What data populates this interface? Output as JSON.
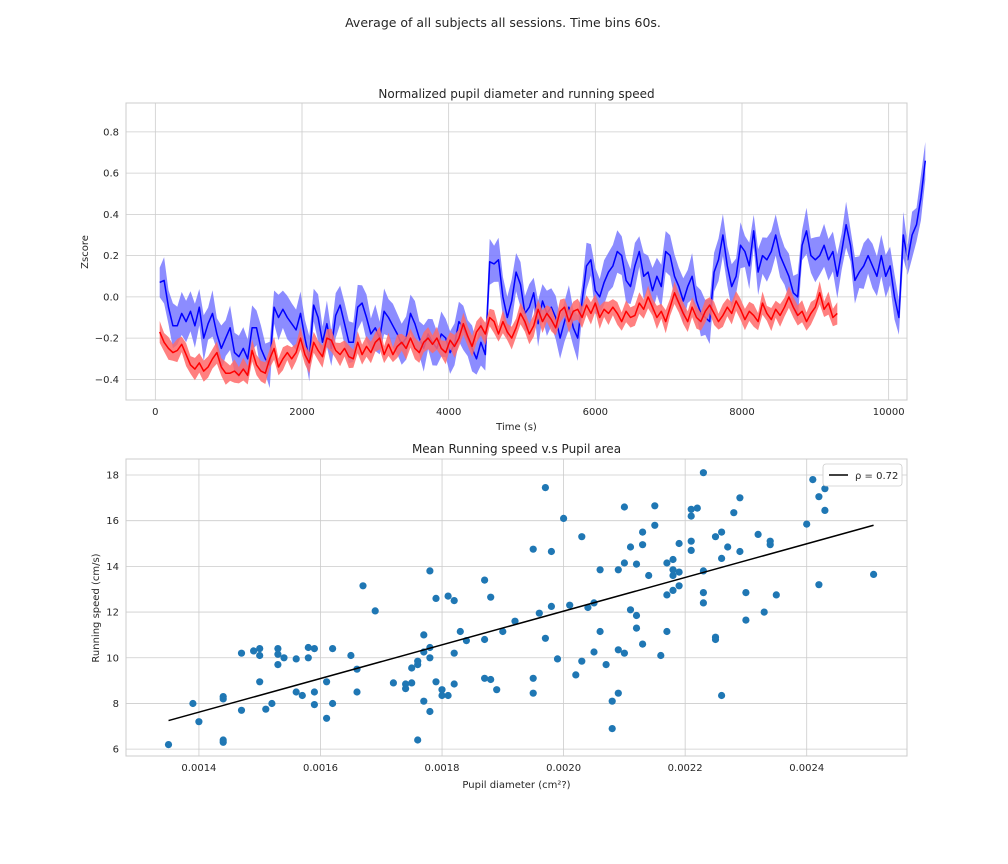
{
  "figure": {
    "suptitle": "Average of all subjects all sessions. Time bins 60s."
  },
  "chart_data": [
    {
      "type": "line",
      "title": "Normalized pupil diameter and running speed",
      "xlabel": "Time (s)",
      "ylabel": "Zscore",
      "xlim": [
        -400,
        10250
      ],
      "ylim": [
        -0.5,
        0.94
      ],
      "xticks": [
        0,
        2000,
        4000,
        6000,
        8000,
        10000
      ],
      "xtick_labels": [
        "0",
        "2000",
        "4000",
        "6000",
        "8000",
        "10000"
      ],
      "yticks": [
        -0.4,
        -0.2,
        0.0,
        0.2,
        0.4,
        0.6,
        0.8
      ],
      "ytick_labels": [
        "−0.4",
        "−0.2",
        "0.0",
        "0.2",
        "0.4",
        "0.6",
        "0.8"
      ],
      "grid": true,
      "legend": "none",
      "series": [
        {
          "color": "#0000ff",
          "band_color": "#7878ff",
          "band_opacity": 0.85,
          "x_start": 60,
          "x_step": 60,
          "values": [
            0.07,
            0.08,
            -0.05,
            -0.14,
            -0.14,
            -0.08,
            -0.12,
            -0.07,
            -0.14,
            -0.05,
            -0.2,
            -0.13,
            -0.08,
            -0.18,
            -0.25,
            -0.2,
            -0.15,
            -0.27,
            -0.29,
            -0.25,
            -0.3,
            -0.15,
            -0.15,
            -0.25,
            -0.3,
            -0.33,
            -0.05,
            -0.1,
            -0.06,
            -0.1,
            -0.13,
            -0.16,
            -0.08,
            -0.2,
            -0.3,
            -0.04,
            -0.1,
            -0.22,
            -0.13,
            -0.25,
            -0.09,
            -0.04,
            -0.13,
            -0.22,
            -0.22,
            -0.05,
            -0.03,
            -0.1,
            -0.18,
            -0.15,
            -0.2,
            -0.07,
            -0.1,
            -0.14,
            -0.18,
            -0.23,
            -0.2,
            -0.08,
            -0.13,
            -0.2,
            -0.25,
            -0.18,
            -0.22,
            -0.25,
            -0.18,
            -0.2,
            -0.27,
            -0.23,
            -0.12,
            -0.15,
            -0.2,
            -0.25,
            -0.3,
            -0.22,
            -0.28,
            0.17,
            0.16,
            0.18,
            0.0,
            -0.1,
            -0.02,
            0.12,
            0.06,
            -0.08,
            -0.05,
            0.02,
            -0.13,
            -0.02,
            -0.08,
            -0.05,
            -0.1,
            -0.2,
            -0.12,
            -0.05,
            -0.15,
            -0.2,
            -0.02,
            0.15,
            0.18,
            0.03,
            0.0,
            0.07,
            0.12,
            0.15,
            0.22,
            0.2,
            0.08,
            0.05,
            0.15,
            0.22,
            0.1,
            0.12,
            0.03,
            0.1,
            0.05,
            0.22,
            0.2,
            0.1,
            0.05,
            -0.02,
            0.05,
            0.1,
            -0.02,
            -0.08,
            -0.1,
            -0.12,
            0.12,
            0.18,
            0.3,
            0.15,
            0.05,
            0.1,
            0.25,
            0.22,
            0.15,
            0.32,
            0.12,
            0.2,
            0.18,
            0.22,
            0.3,
            0.2,
            0.15,
            0.1,
            0.02,
            0.0,
            0.25,
            0.32,
            0.2,
            0.18,
            0.2,
            0.25,
            0.18,
            0.22,
            0.1,
            0.22,
            0.35,
            0.25,
            0.08,
            0.12,
            0.15,
            0.2,
            0.15,
            0.1,
            0.2,
            0.1,
            0.15,
            0.0,
            -0.1,
            0.3,
            0.18,
            0.3,
            0.35,
            0.48,
            0.66
          ],
          "band_half_width": 0.09
        },
        {
          "color": "#ff0000",
          "band_color": "#ff6a6a",
          "band_opacity": 0.85,
          "x_start": 60,
          "x_step": 60,
          "values": [
            -0.17,
            -0.22,
            -0.25,
            -0.27,
            -0.26,
            -0.23,
            -0.28,
            -0.33,
            -0.35,
            -0.32,
            -0.36,
            -0.34,
            -0.3,
            -0.27,
            -0.34,
            -0.37,
            -0.37,
            -0.36,
            -0.38,
            -0.35,
            -0.38,
            -0.26,
            -0.33,
            -0.36,
            -0.37,
            -0.3,
            -0.25,
            -0.34,
            -0.3,
            -0.27,
            -0.3,
            -0.27,
            -0.2,
            -0.28,
            -0.32,
            -0.22,
            -0.26,
            -0.29,
            -0.2,
            -0.21,
            -0.26,
            -0.28,
            -0.25,
            -0.29,
            -0.3,
            -0.22,
            -0.28,
            -0.24,
            -0.27,
            -0.22,
            -0.2,
            -0.28,
            -0.23,
            -0.28,
            -0.24,
            -0.22,
            -0.25,
            -0.2,
            -0.25,
            -0.27,
            -0.22,
            -0.2,
            -0.23,
            -0.2,
            -0.25,
            -0.27,
            -0.21,
            -0.24,
            -0.2,
            -0.13,
            -0.19,
            -0.24,
            -0.17,
            -0.14,
            -0.18,
            -0.1,
            -0.12,
            -0.18,
            -0.12,
            -0.17,
            -0.2,
            -0.15,
            -0.08,
            -0.12,
            -0.18,
            -0.14,
            -0.06,
            -0.12,
            -0.08,
            -0.11,
            -0.15,
            -0.07,
            -0.05,
            -0.12,
            -0.07,
            -0.06,
            -0.1,
            -0.04,
            -0.08,
            -0.03,
            -0.1,
            -0.06,
            -0.08,
            -0.05,
            -0.08,
            -0.12,
            -0.07,
            -0.1,
            -0.09,
            -0.03,
            -0.06,
            0.0,
            -0.05,
            -0.1,
            -0.07,
            -0.12,
            -0.05,
            0.02,
            -0.03,
            -0.08,
            -0.12,
            -0.05,
            -0.1,
            -0.12,
            -0.07,
            -0.04,
            -0.08,
            -0.12,
            -0.09,
            -0.05,
            -0.08,
            -0.02,
            -0.06,
            -0.11,
            -0.07,
            -0.09,
            -0.12,
            -0.03,
            -0.08,
            -0.11,
            -0.06,
            -0.09,
            -0.05,
            0.0,
            -0.05,
            -0.09,
            -0.07,
            -0.12,
            -0.08,
            -0.05,
            0.02,
            -0.06,
            -0.03,
            -0.1,
            -0.08
          ],
          "band_half_width": 0.045
        }
      ]
    },
    {
      "type": "scatter",
      "title": "Mean Running speed v.s Pupil area",
      "xlabel": "Pupil diameter (cm²?)",
      "ylabel": "Running speed (cm/s)",
      "xlim": [
        0.00128,
        0.002565
      ],
      "ylim": [
        5.7,
        18.7
      ],
      "xticks": [
        0.0014,
        0.0016,
        0.0018,
        0.002,
        0.0022,
        0.0024
      ],
      "xtick_labels": [
        "0.0014",
        "0.0016",
        "0.0018",
        "0.0020",
        "0.0022",
        "0.0024"
      ],
      "yticks": [
        6,
        8,
        10,
        12,
        14,
        16,
        18
      ],
      "ytick_labels": [
        "6",
        "8",
        "10",
        "12",
        "14",
        "16",
        "18"
      ],
      "grid": true,
      "legend": "top-right",
      "legend_label": "ρ = 0.72",
      "point_color": "#1f77b4",
      "fit_line": {
        "color": "#000000",
        "x": [
          0.00135,
          0.00251
        ],
        "y": [
          7.25,
          15.8
        ]
      },
      "points": [
        [
          0.00135,
          6.2
        ],
        [
          0.00139,
          8.0
        ],
        [
          0.0014,
          7.2
        ],
        [
          0.00144,
          8.3
        ],
        [
          0.00144,
          8.2
        ],
        [
          0.00144,
          6.4
        ],
        [
          0.00144,
          6.3
        ],
        [
          0.00147,
          7.7
        ],
        [
          0.00147,
          10.2
        ],
        [
          0.00149,
          10.3
        ],
        [
          0.0015,
          10.4
        ],
        [
          0.0015,
          8.95
        ],
        [
          0.0015,
          10.1
        ],
        [
          0.00151,
          7.75
        ],
        [
          0.00152,
          8.0
        ],
        [
          0.00153,
          10.4
        ],
        [
          0.00153,
          10.15
        ],
        [
          0.00153,
          9.7
        ],
        [
          0.00154,
          10.0
        ],
        [
          0.00156,
          8.5
        ],
        [
          0.00156,
          9.95
        ],
        [
          0.00157,
          8.35
        ],
        [
          0.00158,
          10.0
        ],
        [
          0.00158,
          10.45
        ],
        [
          0.00159,
          10.4
        ],
        [
          0.00159,
          8.5
        ],
        [
          0.00159,
          7.95
        ],
        [
          0.00161,
          7.35
        ],
        [
          0.00161,
          8.95
        ],
        [
          0.00162,
          10.4
        ],
        [
          0.00162,
          8.0
        ],
        [
          0.00165,
          10.1
        ],
        [
          0.00166,
          9.5
        ],
        [
          0.00166,
          8.5
        ],
        [
          0.00167,
          13.15
        ],
        [
          0.00169,
          12.05
        ],
        [
          0.00172,
          8.9
        ],
        [
          0.00174,
          8.85
        ],
        [
          0.00174,
          8.65
        ],
        [
          0.00175,
          9.55
        ],
        [
          0.00175,
          8.9
        ],
        [
          0.00176,
          6.4
        ],
        [
          0.00176,
          9.7
        ],
        [
          0.00176,
          9.85
        ],
        [
          0.00177,
          8.1
        ],
        [
          0.00177,
          10.25
        ],
        [
          0.00177,
          11.0
        ],
        [
          0.00178,
          13.8
        ],
        [
          0.00178,
          10.0
        ],
        [
          0.00178,
          10.45
        ],
        [
          0.00178,
          7.65
        ],
        [
          0.00179,
          8.95
        ],
        [
          0.00179,
          12.6
        ],
        [
          0.0018,
          8.35
        ],
        [
          0.0018,
          8.6
        ],
        [
          0.00181,
          8.35
        ],
        [
          0.00181,
          12.7
        ],
        [
          0.00182,
          12.5
        ],
        [
          0.00182,
          10.2
        ],
        [
          0.00182,
          8.85
        ],
        [
          0.00183,
          11.15
        ],
        [
          0.00184,
          10.75
        ],
        [
          0.00187,
          9.1
        ],
        [
          0.00187,
          13.4
        ],
        [
          0.00187,
          10.8
        ],
        [
          0.00188,
          9.05
        ],
        [
          0.00188,
          12.65
        ],
        [
          0.00189,
          8.6
        ],
        [
          0.0019,
          11.15
        ],
        [
          0.00192,
          11.6
        ],
        [
          0.00195,
          8.45
        ],
        [
          0.00195,
          9.1
        ],
        [
          0.00195,
          14.75
        ],
        [
          0.00196,
          11.95
        ],
        [
          0.00197,
          10.85
        ],
        [
          0.00197,
          17.45
        ],
        [
          0.00198,
          12.25
        ],
        [
          0.00198,
          14.65
        ],
        [
          0.00199,
          9.95
        ],
        [
          0.002,
          16.1
        ],
        [
          0.00201,
          12.3
        ],
        [
          0.00202,
          9.25
        ],
        [
          0.00203,
          9.85
        ],
        [
          0.00203,
          15.3
        ],
        [
          0.00204,
          12.2
        ],
        [
          0.00205,
          10.25
        ],
        [
          0.00205,
          12.4
        ],
        [
          0.00206,
          11.15
        ],
        [
          0.00206,
          13.85
        ],
        [
          0.00207,
          9.7
        ],
        [
          0.00208,
          8.1
        ],
        [
          0.00208,
          6.9
        ],
        [
          0.00209,
          13.85
        ],
        [
          0.00209,
          10.35
        ],
        [
          0.00209,
          8.45
        ],
        [
          0.0021,
          14.15
        ],
        [
          0.0021,
          16.6
        ],
        [
          0.0021,
          10.2
        ],
        [
          0.00211,
          12.1
        ],
        [
          0.00211,
          14.85
        ],
        [
          0.00212,
          11.3
        ],
        [
          0.00212,
          11.85
        ],
        [
          0.00212,
          14.1
        ],
        [
          0.00213,
          15.5
        ],
        [
          0.00213,
          14.95
        ],
        [
          0.00213,
          10.6
        ],
        [
          0.00214,
          13.6
        ],
        [
          0.00215,
          16.65
        ],
        [
          0.00215,
          15.8
        ],
        [
          0.00216,
          10.1
        ],
        [
          0.00217,
          14.15
        ],
        [
          0.00217,
          11.15
        ],
        [
          0.00217,
          12.75
        ],
        [
          0.00218,
          13.6
        ],
        [
          0.00218,
          12.95
        ],
        [
          0.00218,
          13.85
        ],
        [
          0.00218,
          14.3
        ],
        [
          0.00219,
          13.15
        ],
        [
          0.00219,
          15.0
        ],
        [
          0.00219,
          13.75
        ],
        [
          0.00221,
          16.2
        ],
        [
          0.00221,
          16.5
        ],
        [
          0.00221,
          14.7
        ],
        [
          0.00221,
          15.1
        ],
        [
          0.00222,
          16.55
        ],
        [
          0.00223,
          18.1
        ],
        [
          0.00223,
          12.85
        ],
        [
          0.00223,
          12.4
        ],
        [
          0.00223,
          13.8
        ],
        [
          0.00225,
          15.3
        ],
        [
          0.00225,
          10.9
        ],
        [
          0.00225,
          10.8
        ],
        [
          0.00226,
          15.5
        ],
        [
          0.00226,
          14.35
        ],
        [
          0.00226,
          8.35
        ],
        [
          0.00227,
          14.85
        ],
        [
          0.00228,
          16.35
        ],
        [
          0.00229,
          17.0
        ],
        [
          0.00229,
          14.65
        ],
        [
          0.0023,
          12.85
        ],
        [
          0.0023,
          11.65
        ],
        [
          0.00232,
          15.4
        ],
        [
          0.00233,
          12.0
        ],
        [
          0.00234,
          15.1
        ],
        [
          0.00234,
          14.95
        ],
        [
          0.00235,
          12.75
        ],
        [
          0.0024,
          15.85
        ],
        [
          0.00241,
          17.8
        ],
        [
          0.00242,
          17.05
        ],
        [
          0.00242,
          13.2
        ],
        [
          0.00243,
          17.4
        ],
        [
          0.00243,
          16.45
        ],
        [
          0.00251,
          13.65
        ]
      ]
    }
  ]
}
